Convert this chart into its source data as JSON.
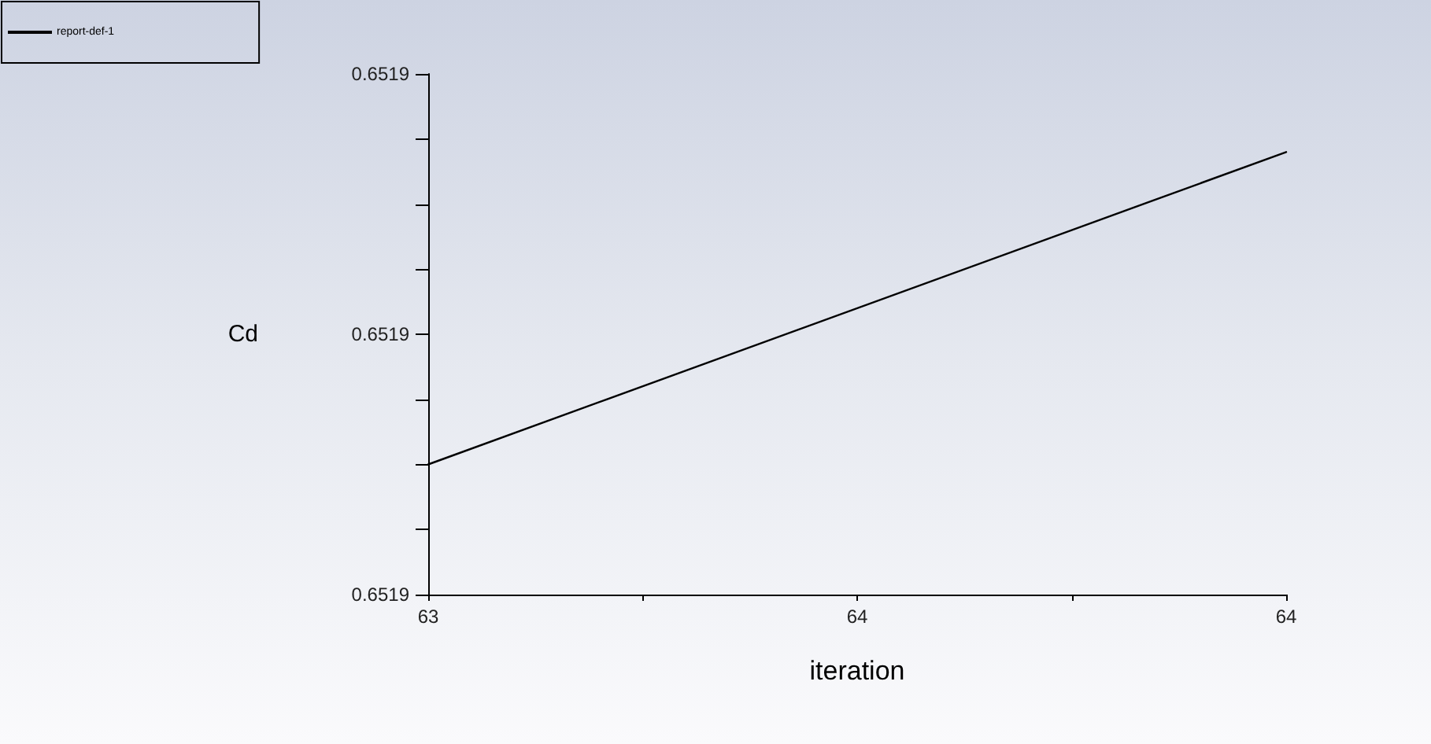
{
  "chart_data": {
    "type": "line",
    "xlabel": "iteration",
    "ylabel": "Cd",
    "x": [
      63,
      64
    ],
    "series": [
      {
        "name": "report-def-1",
        "color": "#000000",
        "values": [
          0.651895,
          0.651907
        ]
      }
    ],
    "xlim": [
      63,
      64
    ],
    "xticks": [
      63,
      {
        "value": 63.25,
        "label": null
      },
      {
        "value": 63.5,
        "label": "64"
      },
      {
        "value": 63.75,
        "label": null
      },
      64
    ],
    "ylim": [
      0.65189,
      0.65191
    ],
    "yticks": [
      {
        "value": 0.65189,
        "label": "0.6519"
      },
      {
        "value": 0.6518925,
        "label": null
      },
      {
        "value": 0.651895,
        "label": null
      },
      {
        "value": 0.6518975,
        "label": null
      },
      {
        "value": 0.6519,
        "label": "0.6519"
      },
      {
        "value": 0.6519025,
        "label": null
      },
      {
        "value": 0.651905,
        "label": null
      },
      {
        "value": 0.6519075,
        "label": null
      },
      {
        "value": 0.65191,
        "label": "0.6519"
      }
    ],
    "legend": "top left"
  }
}
